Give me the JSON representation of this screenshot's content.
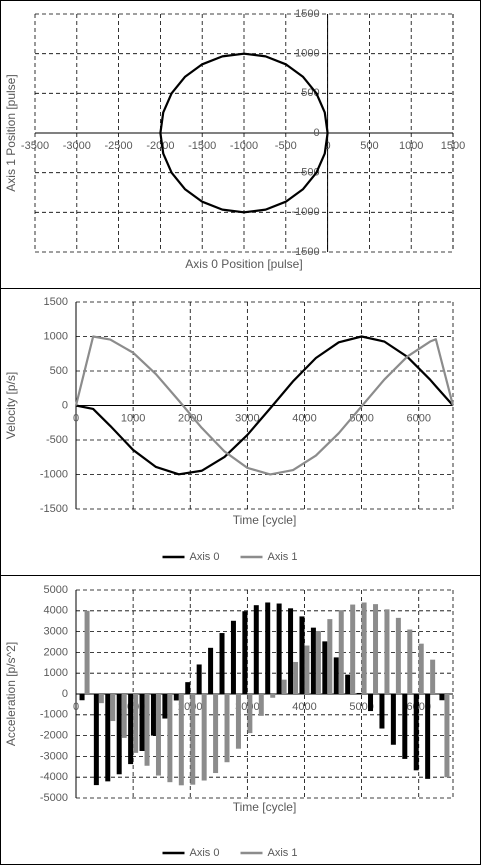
{
  "chart_data": [
    {
      "type": "line",
      "x_label": "Axis 0 Position [pulse]",
      "y_label": "Axis 1 Position [pulse]",
      "x": [
        0,
        -34,
        -134,
        -293,
        -500,
        -741,
        -1000,
        -1259,
        -1500,
        -1707,
        -1866,
        -1966,
        -2000,
        -1966,
        -1866,
        -1707,
        -1500,
        -1259,
        -1000,
        -741,
        -500,
        -293,
        -134,
        -34,
        0
      ],
      "values": [
        0,
        259,
        500,
        707,
        866,
        966,
        1000,
        966,
        866,
        707,
        500,
        259,
        0,
        -259,
        -500,
        -707,
        -866,
        -966,
        -1000,
        -966,
        -866,
        -707,
        -500,
        -259,
        0
      ],
      "color": "#000000",
      "xlim": [
        -3500,
        1500
      ],
      "xticks": [
        -3500,
        -3000,
        -2500,
        -2000,
        -1500,
        -1000,
        -500,
        0,
        500,
        1000,
        1500
      ],
      "ylim": [
        -1500,
        1500
      ],
      "yticks": [
        -1500,
        -1000,
        -500,
        0,
        500,
        1000,
        1500
      ],
      "grid": true
    },
    {
      "type": "line",
      "x_label": "Time [cycle]",
      "y_label": "Velocity [p/s]",
      "x": [
        0,
        300,
        600,
        1000,
        1400,
        1800,
        2200,
        2600,
        3000,
        3400,
        3800,
        4200,
        4600,
        5000,
        5400,
        5800,
        6200,
        6300,
        6600
      ],
      "series": [
        {
          "name": "Axis 0",
          "color": "#000000",
          "values": [
            0,
            -50,
            -296,
            -644,
            -891,
            -997,
            -946,
            -746,
            -427,
            -42,
            351,
            688,
            916,
            1000,
            926,
            706,
            374,
            279,
            0
          ]
        },
        {
          "name": "Axis 1",
          "color": "#8c8c8c",
          "values": [
            0,
            1000,
            955,
            765,
            454,
            71,
            -323,
            -666,
            -904,
            -999,
            -936,
            -726,
            -401,
            -12,
            378,
            709,
            927,
            960,
            0
          ]
        }
      ],
      "xlim": [
        0,
        6600
      ],
      "xticks": [
        0,
        1000,
        2000,
        3000,
        4000,
        5000,
        6000
      ],
      "ylim": [
        -1500,
        1500
      ],
      "yticks": [
        -1500,
        -1000,
        -500,
        0,
        500,
        1000,
        1500
      ],
      "grid": true,
      "legend": "bottom"
    },
    {
      "type": "bar",
      "x_label": "Time [cycle]",
      "y_label": "Acceleration [p/s^2]",
      "x": [
        150,
        400,
        600,
        800,
        1000,
        1200,
        1400,
        1600,
        1800,
        2000,
        2200,
        2400,
        2600,
        2800,
        3000,
        3200,
        3400,
        3600,
        3800,
        4000,
        4200,
        4400,
        4600,
        4800,
        5000,
        5200,
        5400,
        5600,
        5800,
        6000,
        6200,
        6450
      ],
      "series": [
        {
          "name": "Axis 0",
          "color": "#000000",
          "values": [
            -300,
            -4380,
            -4200,
            -3860,
            -3370,
            -2740,
            -2000,
            -1180,
            -310,
            570,
            1420,
            2220,
            2930,
            3520,
            3980,
            4270,
            4400,
            4350,
            4120,
            3730,
            3190,
            2530,
            1760,
            930,
            50,
            -820,
            -1660,
            -2440,
            -3120,
            -3670,
            -4080,
            -300
          ]
        },
        {
          "name": "Axis 1",
          "color": "#8c8c8c",
          "values": [
            4000,
            -440,
            -1300,
            -2110,
            -2830,
            -3450,
            -3920,
            -4240,
            -4390,
            -4360,
            -4160,
            -3800,
            -3280,
            -2630,
            -1880,
            -1050,
            -180,
            690,
            1540,
            2330,
            3030,
            3600,
            4030,
            4300,
            4400,
            4320,
            4070,
            3660,
            3100,
            2420,
            1650,
            -4000
          ]
        }
      ],
      "xlim": [
        0,
        6600
      ],
      "xticks": [
        0,
        1000,
        2000,
        3000,
        4000,
        5000,
        6000
      ],
      "ylim": [
        -5000,
        5000
      ],
      "yticks": [
        -5000,
        -4000,
        -3000,
        -2000,
        -1000,
        0,
        1000,
        2000,
        3000,
        4000,
        5000
      ],
      "grid": true,
      "legend": "bottom"
    }
  ]
}
